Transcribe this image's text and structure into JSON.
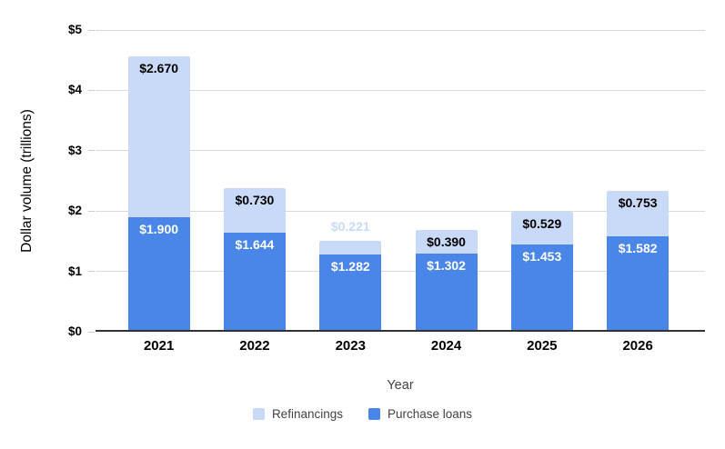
{
  "axes": {
    "x_title": "Year",
    "y_title": "Dollar volume (trillions)"
  },
  "legend": {
    "items": [
      {
        "label": "Refinancings",
        "color": "#c9daf8"
      },
      {
        "label": "Purchase loans",
        "color": "#4a86e8"
      }
    ]
  },
  "chart_data": {
    "type": "bar",
    "stacked": true,
    "title": "",
    "xlabel": "Year",
    "ylabel": "Dollar volume (trillions)",
    "categories": [
      "2021",
      "2022",
      "2023",
      "2024",
      "2025",
      "2026"
    ],
    "series": [
      {
        "name": "Purchase loans",
        "color": "#4a86e8",
        "label_color": "#ffffff",
        "values": [
          1.9,
          1.644,
          1.282,
          1.302,
          1.453,
          1.582
        ],
        "labels": [
          "$1.900",
          "$1.644",
          "$1.282",
          "$1.302",
          "$1.453",
          "$1.582"
        ]
      },
      {
        "name": "Refinancings",
        "color": "#c9daf8",
        "label_color": "#000000",
        "values": [
          2.67,
          0.73,
          0.221,
          0.39,
          0.529,
          0.753
        ],
        "labels": [
          "$2.670",
          "$0.730",
          "$0.221",
          "$0.390",
          "$0.529",
          "$0.753"
        ]
      }
    ],
    "ylim": [
      0,
      5
    ],
    "y_ticks": [
      {
        "value": 0,
        "label": "$0"
      },
      {
        "value": 1,
        "label": "$1"
      },
      {
        "value": 2,
        "label": "$2"
      },
      {
        "value": 3,
        "label": "$3"
      },
      {
        "value": 4,
        "label": "$4"
      },
      {
        "value": 5,
        "label": "$5"
      }
    ],
    "grid": true,
    "gridline_color": "#d9d9d9",
    "axis_line_color": "#333333",
    "legend_position": "bottom"
  }
}
